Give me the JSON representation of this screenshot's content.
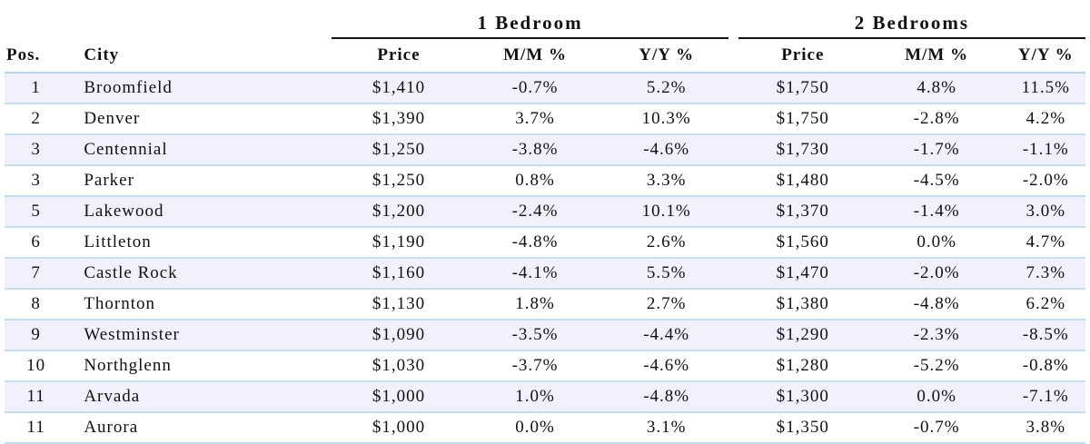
{
  "header": {
    "group_1bed": "1 Bedroom",
    "group_2bed": "2 Bedrooms",
    "col_pos": "Pos.",
    "col_city": "City",
    "col_price_1": "Price",
    "col_mm_1": "M/M %",
    "col_yy_1": "Y/Y %",
    "col_price_2": "Price",
    "col_mm_2": "M/M %",
    "col_yy_2": "Y/Y %"
  },
  "rows": [
    {
      "pos": "1",
      "city": "Broomfield",
      "p1": "$1,410",
      "mm1": "-0.7%",
      "yy1": "5.2%",
      "p2": "$1,750",
      "mm2": "4.8%",
      "yy2": "11.5%"
    },
    {
      "pos": "2",
      "city": "Denver",
      "p1": "$1,390",
      "mm1": "3.7%",
      "yy1": "10.3%",
      "p2": "$1,750",
      "mm2": "-2.8%",
      "yy2": "4.2%"
    },
    {
      "pos": "3",
      "city": "Centennial",
      "p1": "$1,250",
      "mm1": "-3.8%",
      "yy1": "-4.6%",
      "p2": "$1,730",
      "mm2": "-1.7%",
      "yy2": "-1.1%"
    },
    {
      "pos": "3",
      "city": "Parker",
      "p1": "$1,250",
      "mm1": "0.8%",
      "yy1": "3.3%",
      "p2": "$1,480",
      "mm2": "-4.5%",
      "yy2": "-2.0%"
    },
    {
      "pos": "5",
      "city": "Lakewood",
      "p1": "$1,200",
      "mm1": "-2.4%",
      "yy1": "10.1%",
      "p2": "$1,370",
      "mm2": "-1.4%",
      "yy2": "3.0%"
    },
    {
      "pos": "6",
      "city": "Littleton",
      "p1": "$1,190",
      "mm1": "-4.8%",
      "yy1": "2.6%",
      "p2": "$1,560",
      "mm2": "0.0%",
      "yy2": "4.7%"
    },
    {
      "pos": "7",
      "city": "Castle Rock",
      "p1": "$1,160",
      "mm1": "-4.1%",
      "yy1": "5.5%",
      "p2": "$1,470",
      "mm2": "-2.0%",
      "yy2": "7.3%"
    },
    {
      "pos": "8",
      "city": "Thornton",
      "p1": "$1,130",
      "mm1": "1.8%",
      "yy1": "2.7%",
      "p2": "$1,380",
      "mm2": "-4.8%",
      "yy2": "6.2%"
    },
    {
      "pos": "9",
      "city": "Westminster",
      "p1": "$1,090",
      "mm1": "-3.5%",
      "yy1": "-4.4%",
      "p2": "$1,290",
      "mm2": "-2.3%",
      "yy2": "-8.5%"
    },
    {
      "pos": "10",
      "city": "Northglenn",
      "p1": "$1,030",
      "mm1": "-3.7%",
      "yy1": "-4.6%",
      "p2": "$1,280",
      "mm2": "-5.2%",
      "yy2": "-0.8%"
    },
    {
      "pos": "11",
      "city": "Arvada",
      "p1": "$1,000",
      "mm1": "1.0%",
      "yy1": "-4.8%",
      "p2": "$1,300",
      "mm2": "0.0%",
      "yy2": "-7.1%"
    },
    {
      "pos": "11",
      "city": "Aurora",
      "p1": "$1,000",
      "mm1": "0.0%",
      "yy1": "3.1%",
      "p2": "$1,350",
      "mm2": "-0.7%",
      "yy2": "3.8%"
    }
  ],
  "colors": {
    "row_shade": "#f1f1fb",
    "row_rule": "#c8dcef",
    "text": "#111111"
  }
}
